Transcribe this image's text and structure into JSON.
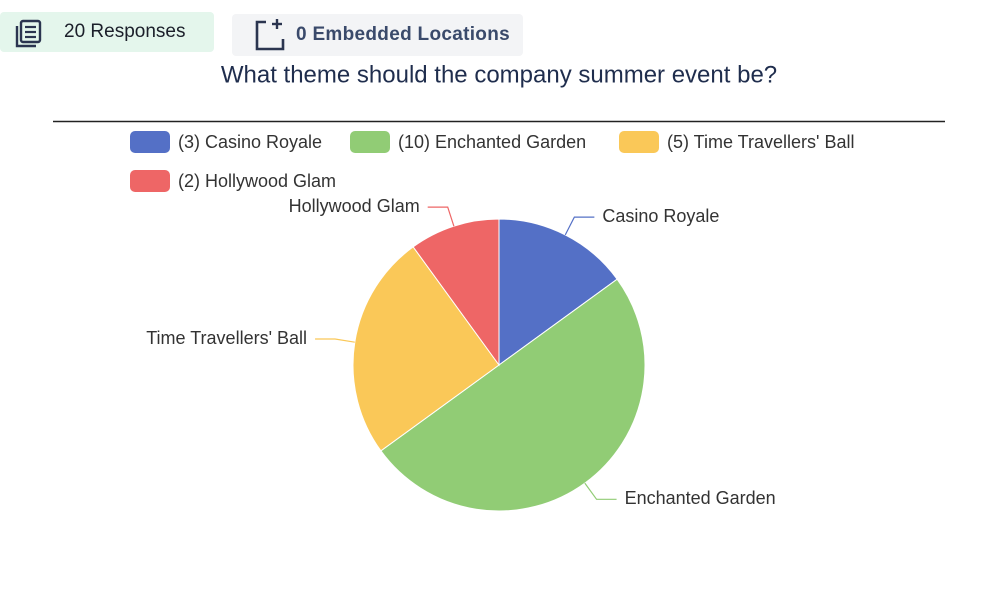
{
  "header": {
    "responses": "20 Responses",
    "embedded": "0 Embedded Locations"
  },
  "chart_data": {
    "type": "pie",
    "title": "What theme should the company summer event be?",
    "categories": [
      "Casino Royale",
      "Enchanted Garden",
      "Time Travellers' Ball",
      "Hollywood Glam"
    ],
    "legend_labels": [
      "(3) Casino Royale",
      "(10) Enchanted Garden",
      "(5) Time Travellers' Ball",
      "(2) Hollywood Glam"
    ],
    "values": [
      3,
      10,
      5,
      2
    ],
    "colors": [
      "#5470c6",
      "#91cc75",
      "#fac858",
      "#ee6666"
    ]
  }
}
